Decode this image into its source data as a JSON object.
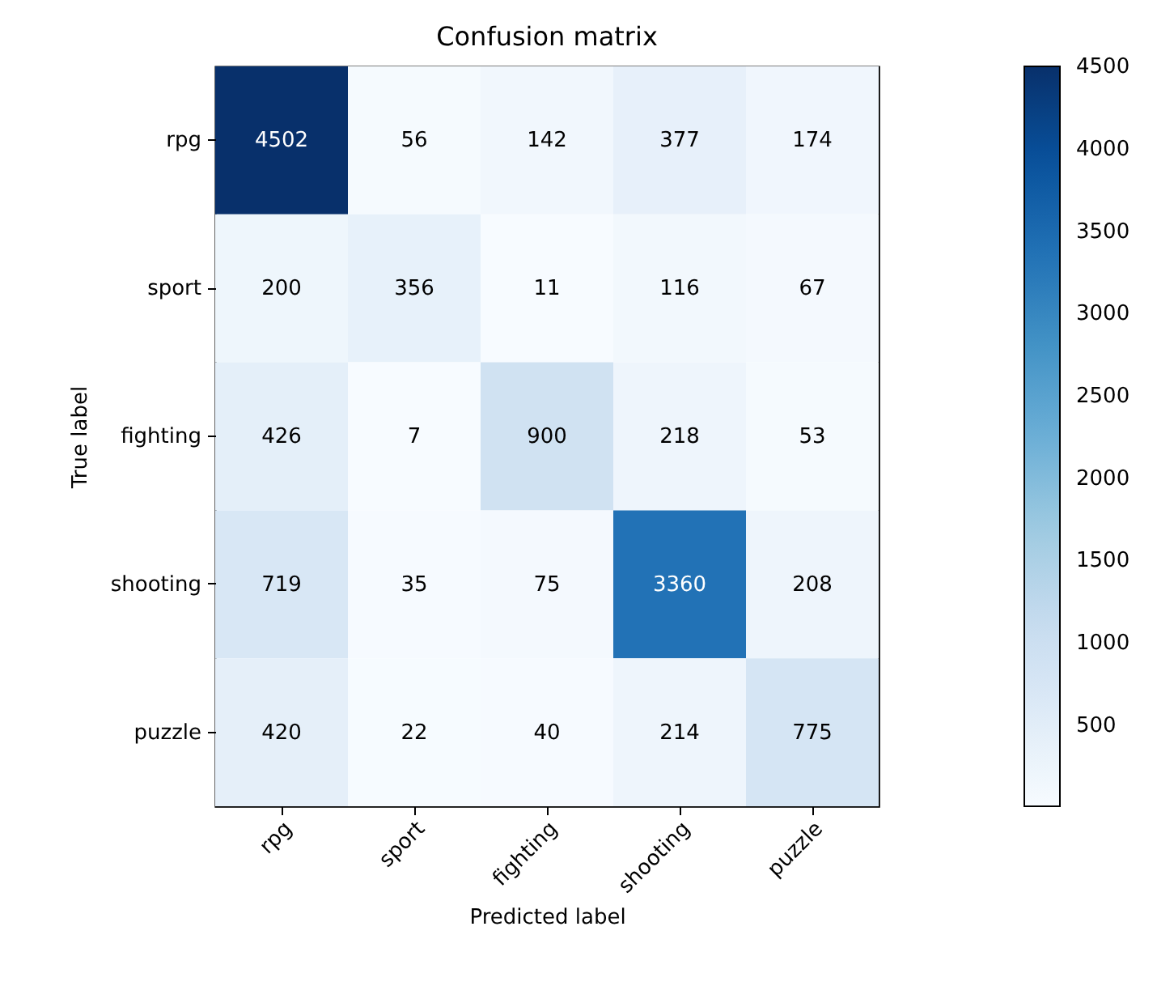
{
  "chart_data": {
    "type": "heatmap",
    "title": "Confusion matrix",
    "xlabel": "Predicted label",
    "ylabel": "True label",
    "categories": [
      "rpg",
      "sport",
      "fighting",
      "shooting",
      "puzzle"
    ],
    "y_categories": [
      "rpg",
      "sport",
      "fighting",
      "shooting",
      "puzzle"
    ],
    "cells": [
      [
        4502,
        56,
        142,
        377,
        174
      ],
      [
        200,
        356,
        11,
        116,
        67
      ],
      [
        426,
        7,
        900,
        218,
        53
      ],
      [
        719,
        35,
        75,
        3360,
        208
      ],
      [
        420,
        22,
        40,
        214,
        775
      ]
    ],
    "clim": [
      7,
      4502
    ],
    "cticks": [
      500,
      1000,
      1500,
      2000,
      2500,
      3000,
      3500,
      4000,
      4500
    ],
    "data_labels": true
  }
}
